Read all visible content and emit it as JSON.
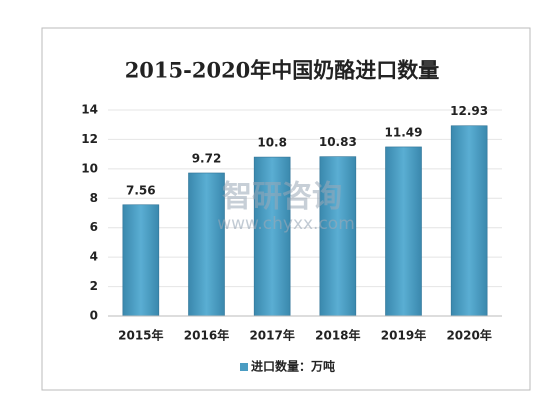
{
  "chart_data": {
    "type": "bar",
    "title": "2015-2020年中国奶酪进口数量",
    "categories": [
      "2015年",
      "2016年",
      "2017年",
      "2018年",
      "2019年",
      "2020年"
    ],
    "series": [
      {
        "name": "进口数量：万吨",
        "color": "#4a9cc2",
        "values": [
          7.56,
          9.72,
          10.8,
          10.83,
          11.49,
          12.93
        ]
      }
    ],
    "ylim": [
      0,
      14
    ],
    "yticks": [
      0,
      2,
      4,
      6,
      8,
      10,
      12,
      14
    ],
    "grid": true,
    "legend": "bottom",
    "watermark": {
      "name": "智研咨询",
      "url": "www.chyxx.com"
    }
  }
}
